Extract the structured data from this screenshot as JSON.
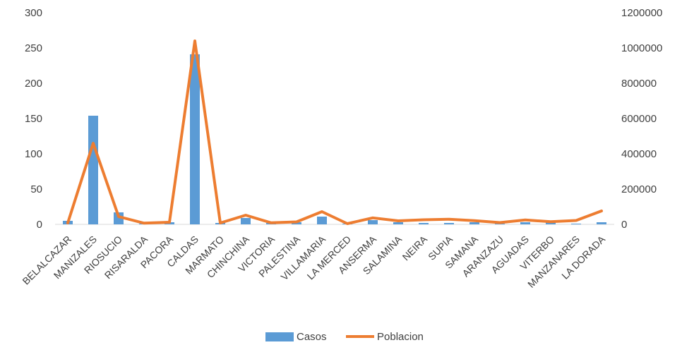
{
  "chart_data": {
    "type": "bar",
    "title": "",
    "xlabel": "",
    "ylabel": "",
    "categories": [
      "BELALCAZAR",
      "MANIZALES",
      "RIOSUCIO",
      "RISARALDA",
      "PACORA",
      "CALDAS",
      "MARMATO",
      "CHINCHINA",
      "VICTORIA",
      "PALESTINA",
      "VILLAMARIA",
      "LA MERCED",
      "ANSERMA",
      "SALAMINA",
      "NEIRA",
      "SUPIA",
      "SAMANA",
      "ARANZAZU",
      "AGUADAS",
      "VITERBO",
      "MANZANARES",
      "LA DORADA"
    ],
    "series": [
      {
        "name": "Casos",
        "type": "bar",
        "axis": "left",
        "color": "#5B9BD5",
        "values": [
          5,
          154,
          17,
          1,
          3,
          241,
          2,
          9,
          2,
          3,
          11,
          1,
          6,
          3,
          2,
          2,
          3,
          1,
          3,
          4,
          1,
          3
        ]
      },
      {
        "name": "Poblacion",
        "type": "line",
        "axis": "right",
        "color": "#ED7D31",
        "values": [
          8000,
          460000,
          44000,
          7000,
          12000,
          1040000,
          8000,
          52000,
          9000,
          14000,
          72000,
          4000,
          37000,
          20000,
          26000,
          29000,
          21000,
          10000,
          25000,
          15000,
          22000,
          76000
        ]
      }
    ],
    "y_left": {
      "min": 0,
      "max": 300,
      "ticks": [
        "0",
        "50",
        "100",
        "150",
        "200",
        "250",
        "300"
      ]
    },
    "y_right": {
      "min": 0,
      "max": 1200000,
      "ticks": [
        "0",
        "200000",
        "400000",
        "600000",
        "800000",
        "1000000",
        "1200000"
      ]
    },
    "grid": false,
    "legend": {
      "position": "bottom",
      "items": [
        "Casos",
        "Poblacion"
      ]
    }
  }
}
